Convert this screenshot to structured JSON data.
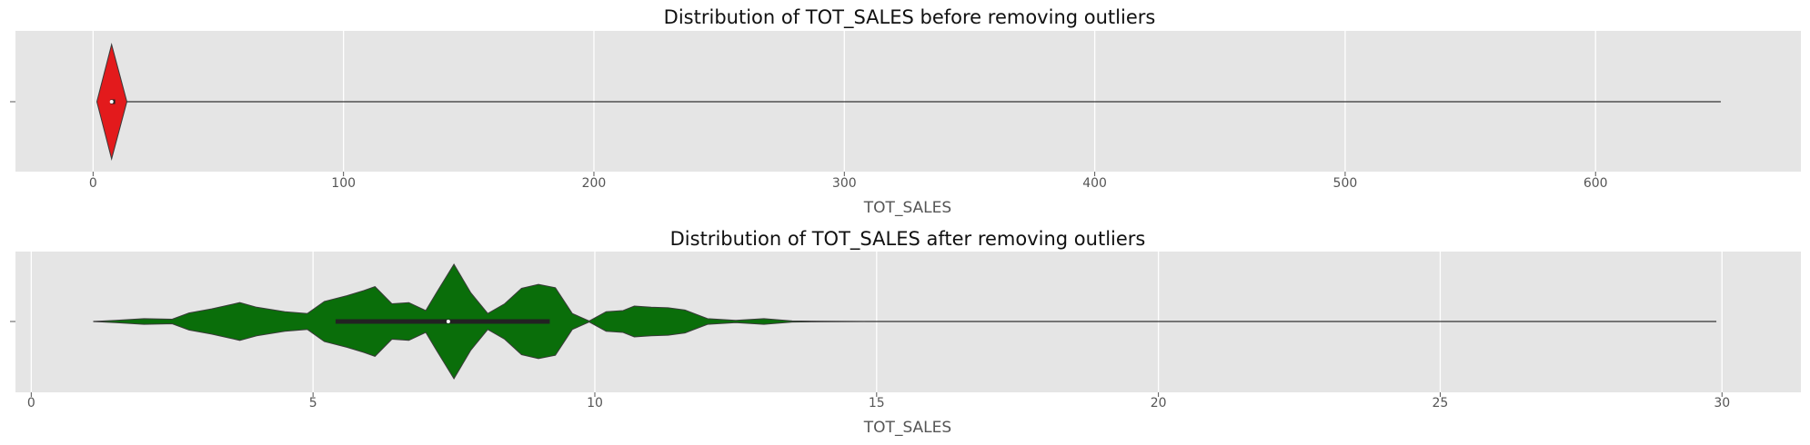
{
  "chart_data": [
    {
      "type": "violin",
      "title": "Distribution of TOT_SALES before removing outliers",
      "xlabel": "TOT_SALES",
      "ylabel": "",
      "xlim": [
        -31,
        682
      ],
      "xticks": [
        0,
        100,
        200,
        300,
        400,
        500,
        600
      ],
      "grid": true,
      "color": "#e31a1c",
      "data_range": [
        1.5,
        650
      ],
      "box": {
        "q1": 6.9,
        "median": 7.4,
        "q3": 8.8
      },
      "density": [
        [
          1.5,
          0
        ],
        [
          7.4,
          1.0
        ],
        [
          13.5,
          0
        ]
      ]
    },
    {
      "type": "violin",
      "title": "Distribution of TOT_SALES after removing outliers",
      "xlabel": "TOT_SALES",
      "ylabel": "",
      "xlim": [
        -0.28,
        31.4
      ],
      "xticks": [
        0,
        5,
        10,
        15,
        20,
        25,
        30
      ],
      "grid": true,
      "color": "#0a6e0a",
      "data_range": [
        1.1,
        29.9
      ],
      "box": {
        "q1": 5.4,
        "median": 7.4,
        "q3": 9.2
      },
      "density": [
        [
          1.1,
          0.0
        ],
        [
          1.5,
          0.02
        ],
        [
          2.0,
          0.05
        ],
        [
          2.5,
          0.04
        ],
        [
          2.8,
          0.15
        ],
        [
          3.2,
          0.22
        ],
        [
          3.7,
          0.33
        ],
        [
          4.0,
          0.25
        ],
        [
          4.5,
          0.17
        ],
        [
          4.9,
          0.14
        ],
        [
          5.2,
          0.35
        ],
        [
          5.6,
          0.45
        ],
        [
          5.9,
          0.54
        ],
        [
          6.1,
          0.61
        ],
        [
          6.4,
          0.31
        ],
        [
          6.7,
          0.33
        ],
        [
          7.0,
          0.19
        ],
        [
          7.2,
          0.52
        ],
        [
          7.5,
          1.0
        ],
        [
          7.8,
          0.5
        ],
        [
          8.1,
          0.14
        ],
        [
          8.4,
          0.31
        ],
        [
          8.7,
          0.58
        ],
        [
          9.0,
          0.65
        ],
        [
          9.3,
          0.59
        ],
        [
          9.6,
          0.14
        ],
        [
          9.9,
          0.01
        ],
        [
          10.2,
          0.17
        ],
        [
          10.5,
          0.19
        ],
        [
          10.7,
          0.27
        ],
        [
          11.0,
          0.25
        ],
        [
          11.3,
          0.24
        ],
        [
          11.6,
          0.2
        ],
        [
          12.0,
          0.05
        ],
        [
          12.5,
          0.02
        ],
        [
          13.0,
          0.05
        ],
        [
          13.5,
          0.01
        ],
        [
          14.0,
          0.003
        ],
        [
          14.8,
          0.0
        ]
      ]
    }
  ]
}
